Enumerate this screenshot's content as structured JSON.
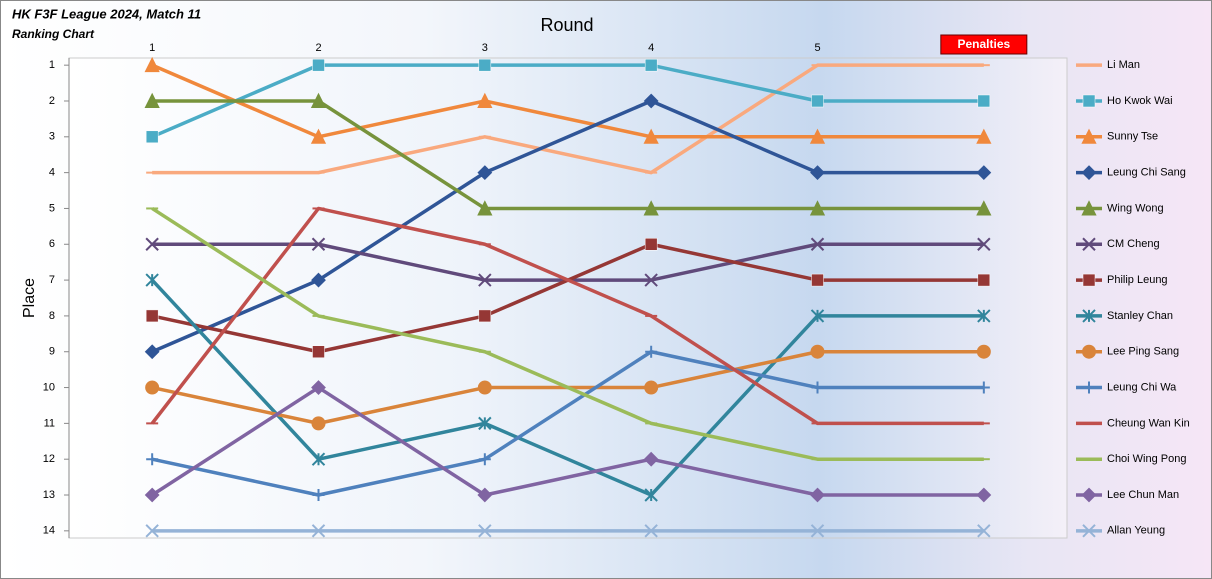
{
  "chart_data": {
    "type": "line",
    "title": "HK F3F League 2024, Match 11",
    "subtitle": "Ranking Chart",
    "x_label": "Round",
    "y_label": "Place",
    "categories": [
      "1",
      "2",
      "3",
      "4",
      "5",
      "Penalties"
    ],
    "category_label_boxes": [
      null,
      null,
      null,
      null,
      null,
      "#ff0000"
    ],
    "ylim": [
      0.8,
      14.2
    ],
    "y_reversed": true,
    "yticks": [
      1,
      2,
      3,
      4,
      5,
      6,
      7,
      8,
      9,
      10,
      11,
      12,
      13,
      14
    ],
    "legend": "right",
    "series": [
      {
        "name": "Li Man",
        "color": "#f9a97e",
        "marker": "dash",
        "values": [
          4,
          4,
          3,
          4,
          1,
          1
        ]
      },
      {
        "name": "Ho Kwok Wai",
        "color": "#4bacc6",
        "marker": "square",
        "values": [
          3,
          1,
          1,
          1,
          2,
          2
        ]
      },
      {
        "name": "Sunny Tse",
        "color": "#f0883c",
        "marker": "triangle",
        "values": [
          1,
          3,
          2,
          3,
          3,
          3
        ]
      },
      {
        "name": "Leung Chi Sang",
        "color": "#2f5597",
        "marker": "diamond",
        "values": [
          9,
          7,
          4,
          2,
          4,
          4
        ]
      },
      {
        "name": "Wing Wong",
        "color": "#77933c",
        "marker": "triangle",
        "values": [
          2,
          2,
          5,
          5,
          5,
          5
        ]
      },
      {
        "name": "CM Cheng",
        "color": "#604a7b",
        "marker": "x",
        "values": [
          6,
          6,
          7,
          7,
          6,
          6
        ]
      },
      {
        "name": "Philip Leung",
        "color": "#953735",
        "marker": "square",
        "values": [
          8,
          9,
          8,
          6,
          7,
          7
        ]
      },
      {
        "name": "Stanley Chan",
        "color": "#31859c",
        "marker": "star",
        "values": [
          7,
          12,
          11,
          13,
          8,
          8
        ]
      },
      {
        "name": "Lee Ping Sang",
        "color": "#d9843a",
        "marker": "circle",
        "values": [
          10,
          11,
          10,
          10,
          9,
          9
        ]
      },
      {
        "name": "Leung Chi Wa",
        "color": "#4f81bd",
        "marker": "plus",
        "values": [
          12,
          13,
          12,
          9,
          10,
          10
        ]
      },
      {
        "name": "Cheung Wan Kin",
        "color": "#c0504d",
        "marker": "dash",
        "values": [
          11,
          5,
          6,
          8,
          11,
          11
        ]
      },
      {
        "name": "Choi Wing Pong",
        "color": "#9bbb59",
        "marker": "dash",
        "values": [
          5,
          8,
          9,
          11,
          12,
          12
        ]
      },
      {
        "name": "Lee Chun Man",
        "color": "#8064a2",
        "marker": "diamond",
        "values": [
          13,
          10,
          13,
          12,
          13,
          13
        ]
      },
      {
        "name": "Allan Yeung",
        "color": "#95b3d7",
        "marker": "x",
        "values": [
          14,
          14,
          14,
          14,
          14,
          14
        ]
      }
    ]
  }
}
